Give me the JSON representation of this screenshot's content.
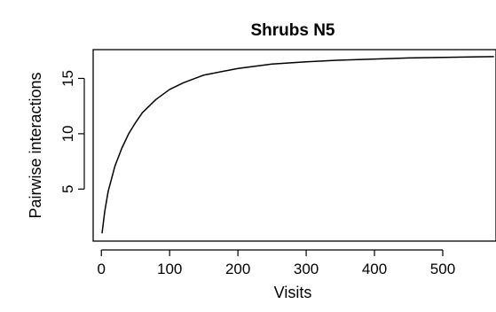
{
  "chart_data": {
    "type": "line",
    "title": "Shrubs N5",
    "xlabel": "Visits",
    "ylabel": "Pairwise interactions",
    "xlim": [
      -12,
      578
    ],
    "ylim": [
      0.3,
      17.6
    ],
    "x_ticks": [
      0,
      100,
      200,
      300,
      400,
      500
    ],
    "y_ticks": [
      5,
      10,
      15
    ],
    "grid": false,
    "series": [
      {
        "color": "#000000",
        "x": [
          1,
          5,
          10,
          20,
          30,
          40,
          50,
          60,
          80,
          100,
          120,
          150,
          200,
          250,
          300,
          350,
          400,
          450,
          500,
          550,
          575
        ],
        "y": [
          1.0,
          3.0,
          4.8,
          7.1,
          8.7,
          10.0,
          11.0,
          11.9,
          13.1,
          14.0,
          14.6,
          15.3,
          15.9,
          16.3,
          16.5,
          16.65,
          16.75,
          16.85,
          16.9,
          16.95,
          16.97
        ]
      }
    ]
  }
}
